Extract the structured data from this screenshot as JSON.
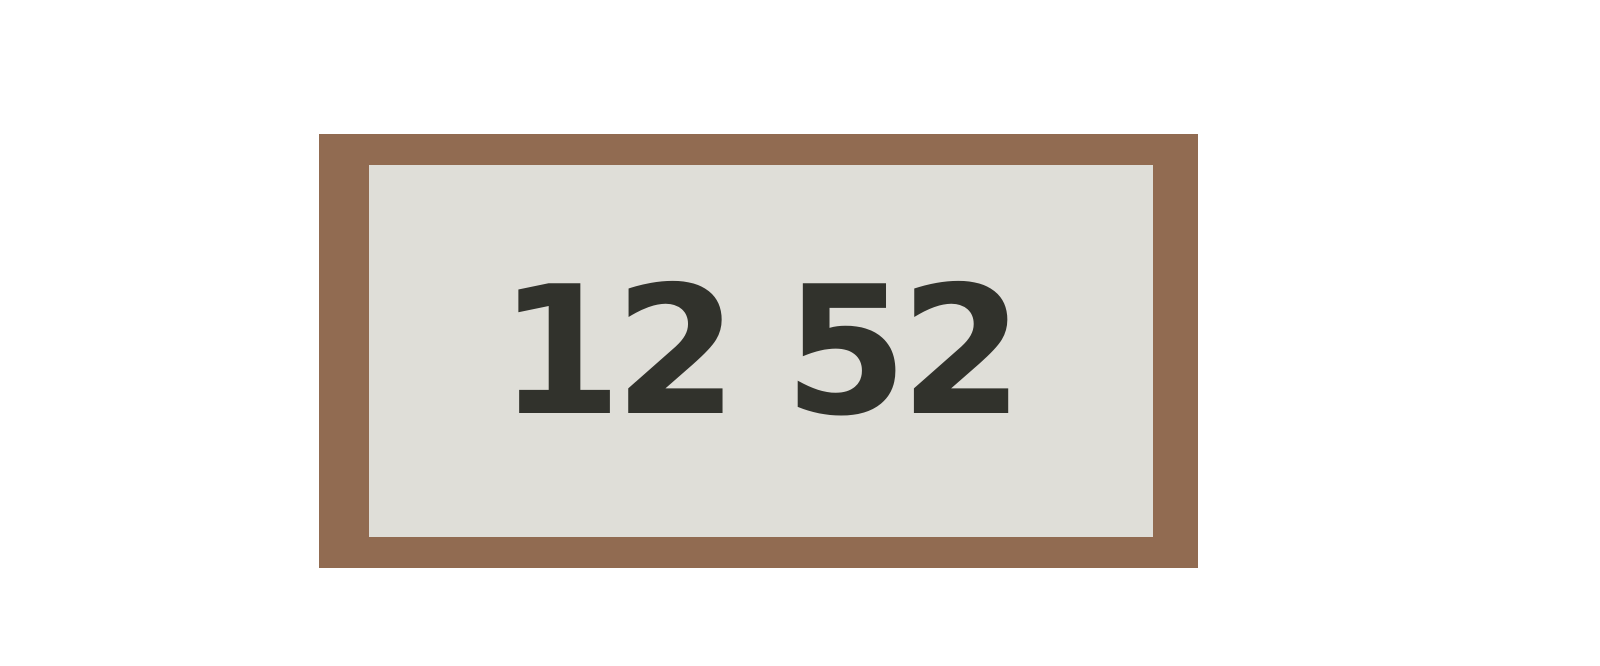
{
  "plaque": {
    "number": "12 52",
    "colors": {
      "frame": "#916b51",
      "face": "#dfded8",
      "text": "#31322c",
      "background": "#ffffff"
    }
  }
}
